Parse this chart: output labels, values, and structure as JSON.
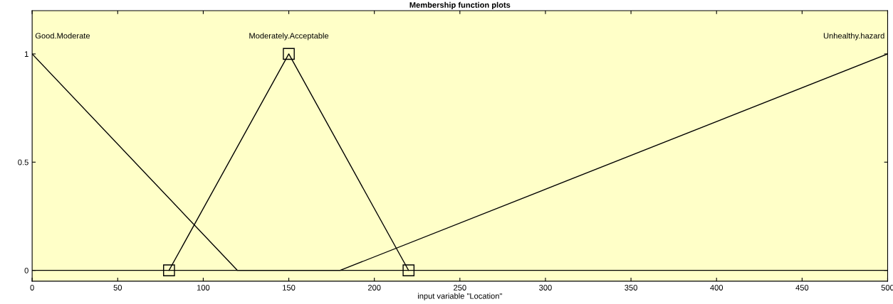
{
  "chart_data": {
    "type": "line",
    "title": "Membership function plots",
    "xlabel": "input variable \"Location\"",
    "xlim": [
      0,
      500
    ],
    "xticks": [
      0,
      50,
      100,
      150,
      200,
      250,
      300,
      350,
      400,
      450,
      500
    ],
    "ylim": [
      -0.05,
      1.2
    ],
    "yticks": [
      0,
      0.5,
      1
    ],
    "grid": false,
    "series": [
      {
        "name": "Good.Moderate",
        "color": "#000000",
        "x": [
          0,
          120,
          500
        ],
        "values": [
          1,
          0,
          0
        ],
        "marker": "none"
      },
      {
        "name": "Moderately.Acceptable",
        "color": "#000000",
        "x": [
          80,
          150,
          220
        ],
        "values": [
          0,
          1,
          0
        ],
        "marker": "square"
      },
      {
        "name": "Unhealthy.hazard",
        "color": "#000000",
        "x": [
          0,
          180,
          500
        ],
        "values": [
          0,
          0,
          1
        ],
        "marker": "none"
      }
    ]
  }
}
